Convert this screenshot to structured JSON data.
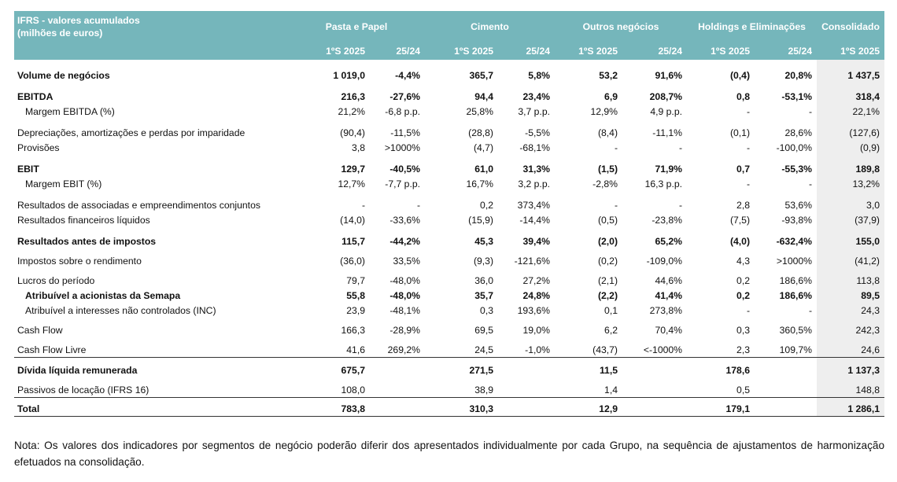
{
  "header": {
    "title_line1": "IFRS - valores acumulados",
    "title_line2": "(milhões de euros)",
    "segments": [
      "Pasta e Papel",
      "Cimento",
      "Outros negócios",
      "Holdings e Eliminações",
      "Consolidado"
    ],
    "period": "1ºS 2025",
    "change": "25/24"
  },
  "rows": [
    {
      "label": "Volume de negócios",
      "bold": true,
      "indent": false,
      "v": [
        "1 019,0",
        "-4,4%",
        "365,7",
        "5,8%",
        "53,2",
        "91,6%",
        "(0,4)",
        "20,8%",
        "1 437,5"
      ]
    },
    {
      "label": "EBITDA",
      "bold": true,
      "indent": false,
      "v": [
        "216,3",
        "-27,6%",
        "94,4",
        "23,4%",
        "6,9",
        "208,7%",
        "0,8",
        "-53,1%",
        "318,4"
      ]
    },
    {
      "label": "Margem EBITDA (%)",
      "bold": false,
      "indent": true,
      "v": [
        "21,2%",
        "-6,8 p.p.",
        "25,8%",
        "3,7 p.p.",
        "12,9%",
        "4,9 p.p.",
        "-",
        "-",
        "22,1%"
      ]
    },
    {
      "label": "Depreciações, amortizações e perdas por imparidade",
      "bold": false,
      "indent": false,
      "v": [
        "(90,4)",
        "-11,5%",
        "(28,8)",
        "-5,5%",
        "(8,4)",
        "-11,1%",
        "(0,1)",
        "28,6%",
        "(127,6)"
      ]
    },
    {
      "label": "Provisões",
      "bold": false,
      "indent": false,
      "v": [
        "3,8",
        ">1000%",
        "(4,7)",
        "-68,1%",
        "-",
        "-",
        "-",
        "-100,0%",
        "(0,9)"
      ]
    },
    {
      "label": "EBIT",
      "bold": true,
      "indent": false,
      "v": [
        "129,7",
        "-40,5%",
        "61,0",
        "31,3%",
        "(1,5)",
        "71,9%",
        "0,7",
        "-55,3%",
        "189,8"
      ]
    },
    {
      "label": "Margem EBIT (%)",
      "bold": false,
      "indent": true,
      "v": [
        "12,7%",
        "-7,7 p.p.",
        "16,7%",
        "3,2 p.p.",
        "-2,8%",
        "16,3 p.p.",
        "-",
        "-",
        "13,2%"
      ]
    },
    {
      "label": "Resultados de associadas e empreendimentos conjuntos",
      "bold": false,
      "indent": false,
      "v": [
        "-",
        "-",
        "0,2",
        "373,4%",
        "-",
        "-",
        "2,8",
        "53,6%",
        "3,0"
      ]
    },
    {
      "label": "Resultados financeiros líquidos",
      "bold": false,
      "indent": false,
      "v": [
        "(14,0)",
        "-33,6%",
        "(15,9)",
        "-14,4%",
        "(0,5)",
        "-23,8%",
        "(7,5)",
        "-93,8%",
        "(37,9)"
      ]
    },
    {
      "label": "Resultados antes de impostos",
      "bold": true,
      "indent": false,
      "v": [
        "115,7",
        "-44,2%",
        "45,3",
        "39,4%",
        "(2,0)",
        "65,2%",
        "(4,0)",
        "-632,4%",
        "155,0"
      ]
    },
    {
      "label": "Impostos sobre o rendimento",
      "bold": false,
      "indent": false,
      "v": [
        "(36,0)",
        "33,5%",
        "(9,3)",
        "-121,6%",
        "(0,2)",
        "-109,0%",
        "4,3",
        ">1000%",
        "(41,2)"
      ]
    },
    {
      "label": "Lucros do período",
      "bold": false,
      "indent": false,
      "v": [
        "79,7",
        "-48,0%",
        "36,0",
        "27,2%",
        "(2,1)",
        "44,6%",
        "0,2",
        "186,6%",
        "113,8"
      ]
    },
    {
      "label": "Atribuível a acionistas da Semapa",
      "bold": true,
      "indent": true,
      "v": [
        "55,8",
        "-48,0%",
        "35,7",
        "24,8%",
        "(2,2)",
        "41,4%",
        "0,2",
        "186,6%",
        "89,5"
      ]
    },
    {
      "label": "Atribuível a interesses não controlados (INC)",
      "bold": false,
      "indent": true,
      "v": [
        "23,9",
        "-48,1%",
        "0,3",
        "193,6%",
        "0,1",
        "273,8%",
        "-",
        "-",
        "24,3"
      ]
    },
    {
      "label": "Cash Flow",
      "bold": false,
      "indent": false,
      "v": [
        "166,3",
        "-28,9%",
        "69,5",
        "19,0%",
        "6,2",
        "70,4%",
        "0,3",
        "360,5%",
        "242,3"
      ]
    },
    {
      "label": "Cash Flow Livre",
      "bold": false,
      "indent": false,
      "v": [
        "41,6",
        "269,2%",
        "24,5",
        "-1,0%",
        "(43,7)",
        "<-1000%",
        "2,3",
        "109,7%",
        "24,6"
      ]
    },
    {
      "label": "Dívida líquida remunerada",
      "bold": true,
      "indent": false,
      "v": [
        "675,7",
        "",
        "271,5",
        "",
        "11,5",
        "",
        "178,6",
        "",
        "1 137,3"
      ]
    },
    {
      "label": "Passivos de locação (IFRS 16)",
      "bold": false,
      "indent": false,
      "v": [
        "108,0",
        "",
        "38,9",
        "",
        "1,4",
        "",
        "0,5",
        "",
        "148,8"
      ]
    },
    {
      "label": "Total",
      "bold": true,
      "indent": false,
      "v": [
        "783,8",
        "",
        "310,3",
        "",
        "12,9",
        "",
        "179,1",
        "",
        "1 286,1"
      ]
    }
  ],
  "note": "Nota: Os valores dos indicadores por segmentos de negócio poderão diferir dos apresentados individualmente por cada Grupo, na sequência de ajustamentos de harmonização efetuados na consolidação."
}
